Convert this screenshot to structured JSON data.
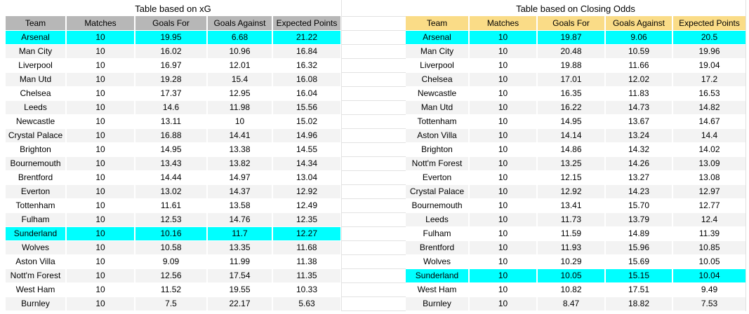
{
  "colors": {
    "highlight": "#00ffff",
    "band": "#f3f3f3",
    "gridline": "#e2e2e2",
    "xg_header_bg": "#b7b7b7",
    "odds_header_bg": "#fadc87",
    "text": "#000000"
  },
  "tables": [
    {
      "id": "xg",
      "title": "Table based on xG",
      "header_bg": "#b7b7b7",
      "columns": [
        "Team",
        "Matches",
        "Goals For",
        "Goals Against",
        "Expected Points"
      ],
      "rows": [
        {
          "team": "Arsenal",
          "matches": "10",
          "gf": "19.95",
          "ga": "6.68",
          "ep": "21.22",
          "highlighted": true
        },
        {
          "team": "Man City",
          "matches": "10",
          "gf": "16.02",
          "ga": "10.96",
          "ep": "16.84"
        },
        {
          "team": "Liverpool",
          "matches": "10",
          "gf": "16.97",
          "ga": "12.01",
          "ep": "16.32"
        },
        {
          "team": "Man Utd",
          "matches": "10",
          "gf": "19.28",
          "ga": "15.4",
          "ep": "16.08"
        },
        {
          "team": "Chelsea",
          "matches": "10",
          "gf": "17.37",
          "ga": "12.95",
          "ep": "16.04"
        },
        {
          "team": "Leeds",
          "matches": "10",
          "gf": "14.6",
          "ga": "11.98",
          "ep": "15.56"
        },
        {
          "team": "Newcastle",
          "matches": "10",
          "gf": "13.11",
          "ga": "10",
          "ep": "15.02"
        },
        {
          "team": "Crystal Palace",
          "matches": "10",
          "gf": "16.88",
          "ga": "14.41",
          "ep": "14.96"
        },
        {
          "team": "Brighton",
          "matches": "10",
          "gf": "14.95",
          "ga": "13.38",
          "ep": "14.55"
        },
        {
          "team": "Bournemouth",
          "matches": "10",
          "gf": "13.43",
          "ga": "13.82",
          "ep": "14.34"
        },
        {
          "team": "Brentford",
          "matches": "10",
          "gf": "14.44",
          "ga": "14.97",
          "ep": "13.04"
        },
        {
          "team": "Everton",
          "matches": "10",
          "gf": "13.02",
          "ga": "14.37",
          "ep": "12.92"
        },
        {
          "team": "Tottenham",
          "matches": "10",
          "gf": "11.61",
          "ga": "13.58",
          "ep": "12.49"
        },
        {
          "team": "Fulham",
          "matches": "10",
          "gf": "12.53",
          "ga": "14.76",
          "ep": "12.35"
        },
        {
          "team": "Sunderland",
          "matches": "10",
          "gf": "10.16",
          "ga": "11.7",
          "ep": "12.27",
          "highlighted": true
        },
        {
          "team": "Wolves",
          "matches": "10",
          "gf": "10.58",
          "ga": "13.35",
          "ep": "11.68"
        },
        {
          "team": "Aston Villa",
          "matches": "10",
          "gf": "9.09",
          "ga": "11.99",
          "ep": "11.38"
        },
        {
          "team": "Nott'm Forest",
          "matches": "10",
          "gf": "12.56",
          "ga": "17.54",
          "ep": "11.35"
        },
        {
          "team": "West Ham",
          "matches": "10",
          "gf": "11.52",
          "ga": "19.55",
          "ep": "10.33"
        },
        {
          "team": "Burnley",
          "matches": "10",
          "gf": "7.5",
          "ga": "22.17",
          "ep": "5.63"
        }
      ]
    },
    {
      "id": "closing-odds",
      "title": "Table based on Closing Odds",
      "header_bg": "#fadc87",
      "columns": [
        "Team",
        "Matches",
        "Goals For",
        "Goals Against",
        "Expected Points"
      ],
      "rows": [
        {
          "team": "Arsenal",
          "matches": "10",
          "gf": "19.87",
          "ga": "9.06",
          "ep": "20.5",
          "highlighted": true
        },
        {
          "team": "Man City",
          "matches": "10",
          "gf": "20.48",
          "ga": "10.59",
          "ep": "19.96"
        },
        {
          "team": "Liverpool",
          "matches": "10",
          "gf": "19.88",
          "ga": "11.66",
          "ep": "19.04"
        },
        {
          "team": "Chelsea",
          "matches": "10",
          "gf": "17.01",
          "ga": "12.02",
          "ep": "17.2"
        },
        {
          "team": "Newcastle",
          "matches": "10",
          "gf": "16.35",
          "ga": "11.83",
          "ep": "16.53"
        },
        {
          "team": "Man Utd",
          "matches": "10",
          "gf": "16.22",
          "ga": "14.73",
          "ep": "14.82"
        },
        {
          "team": "Tottenham",
          "matches": "10",
          "gf": "14.95",
          "ga": "13.67",
          "ep": "14.67"
        },
        {
          "team": "Aston Villa",
          "matches": "10",
          "gf": "14.14",
          "ga": "13.24",
          "ep": "14.4"
        },
        {
          "team": "Brighton",
          "matches": "10",
          "gf": "14.86",
          "ga": "14.32",
          "ep": "14.02"
        },
        {
          "team": "Nott'm Forest",
          "matches": "10",
          "gf": "13.25",
          "ga": "14.26",
          "ep": "13.09"
        },
        {
          "team": "Everton",
          "matches": "10",
          "gf": "12.15",
          "ga": "13.27",
          "ep": "13.08"
        },
        {
          "team": "Crystal Palace",
          "matches": "10",
          "gf": "12.92",
          "ga": "14.23",
          "ep": "12.97"
        },
        {
          "team": "Bournemouth",
          "matches": "10",
          "gf": "13.41",
          "ga": "15.70",
          "ep": "12.77"
        },
        {
          "team": "Leeds",
          "matches": "10",
          "gf": "11.73",
          "ga": "13.79",
          "ep": "12.4"
        },
        {
          "team": "Fulham",
          "matches": "10",
          "gf": "11.59",
          "ga": "14.89",
          "ep": "11.39"
        },
        {
          "team": "Brentford",
          "matches": "10",
          "gf": "11.93",
          "ga": "15.96",
          "ep": "10.85"
        },
        {
          "team": "Wolves",
          "matches": "10",
          "gf": "10.29",
          "ga": "15.69",
          "ep": "10.05"
        },
        {
          "team": "Sunderland",
          "matches": "10",
          "gf": "10.05",
          "ga": "15.15",
          "ep": "10.04",
          "highlighted": true
        },
        {
          "team": "West Ham",
          "matches": "10",
          "gf": "10.82",
          "ga": "17.51",
          "ep": "9.49"
        },
        {
          "team": "Burnley",
          "matches": "10",
          "gf": "8.47",
          "ga": "18.82",
          "ep": "7.53"
        }
      ]
    }
  ]
}
